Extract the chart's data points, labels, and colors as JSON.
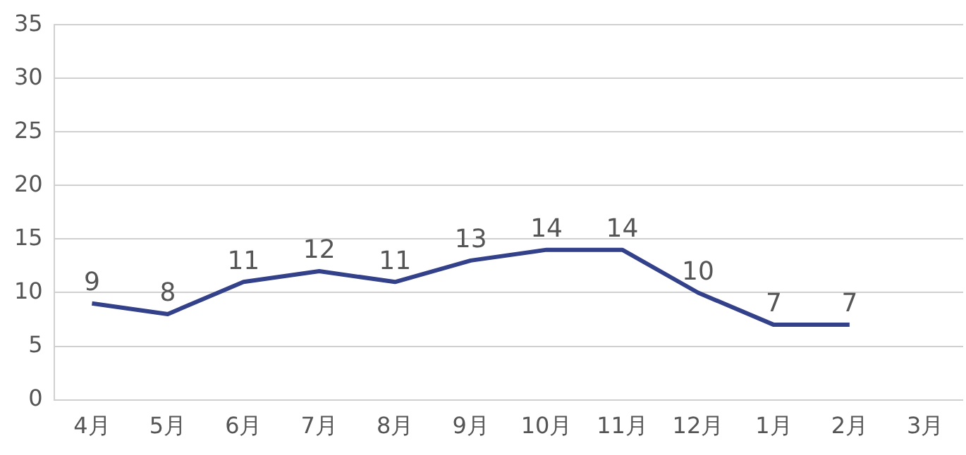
{
  "chart_data": {
    "type": "line",
    "categories": [
      "4月",
      "5月",
      "6月",
      "7月",
      "8月",
      "9月",
      "10月",
      "11月",
      "12月",
      "1月",
      "2月",
      "3月"
    ],
    "series": [
      {
        "color": "#33408a",
        "values": [
          9,
          8,
          11,
          12,
          11,
          13,
          14,
          14,
          10,
          7,
          7,
          null
        ]
      }
    ],
    "ylim": [
      0,
      35
    ],
    "yticks": [
      0,
      5,
      10,
      15,
      20,
      25,
      30,
      35
    ],
    "grid": "y",
    "legend": false,
    "marker": "none",
    "line_style": "solid",
    "data_labels": true
  }
}
